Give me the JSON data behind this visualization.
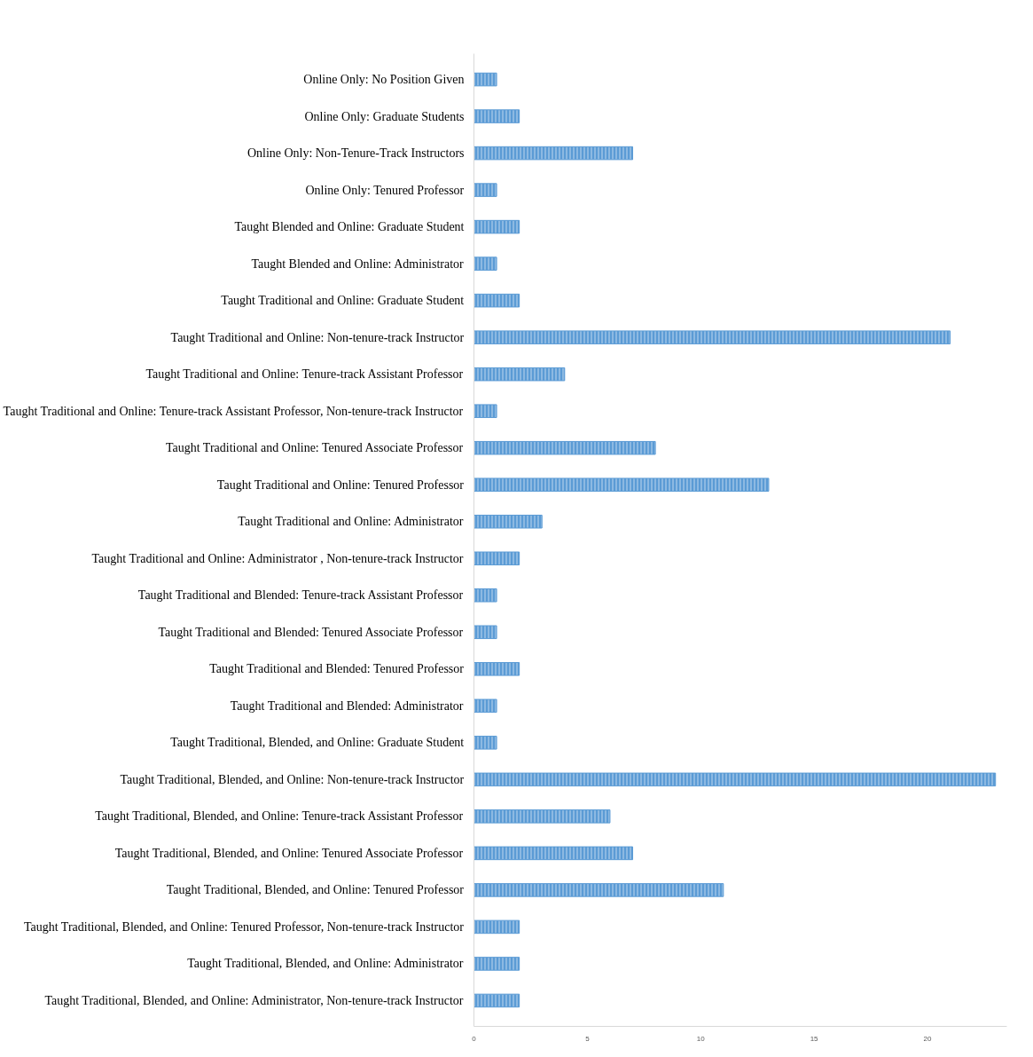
{
  "chart_data": {
    "type": "bar",
    "orientation": "horizontal",
    "categories": [
      "Online Only: No Position Given",
      "Online Only: Graduate Students",
      "Online Only: Non-Tenure-Track Instructors",
      "Online Only: Tenured Professor",
      "Taught Blended and Online: Graduate Student",
      "Taught Blended and Online: Administrator",
      "Taught Traditional and Online: Graduate Student",
      "Taught Traditional and Online: Non-tenure-track Instructor",
      "Taught Traditional and Online: Tenure-track Assistant Professor",
      "Taught Traditional and Online: Tenure-track Assistant Professor, Non-tenure-track Instructor",
      "Taught Traditional and Online: Tenured Associate Professor",
      "Taught Traditional and Online: Tenured Professor",
      "Taught Traditional and Online: Administrator",
      "Taught Traditional and Online: Administrator , Non-tenure-track Instructor",
      "Taught Traditional and Blended: Tenure-track Assistant Professor",
      "Taught Traditional and Blended: Tenured Associate Professor",
      "Taught Traditional and Blended: Tenured Professor",
      "Taught Traditional and Blended: Administrator",
      "Taught Traditional, Blended, and Online: Graduate Student",
      "Taught Traditional, Blended, and Online: Non-tenure-track Instructor",
      "Taught Traditional, Blended, and Online: Tenure-track Assistant Professor",
      "Taught Traditional, Blended, and Online: Tenured Associate Professor",
      "Taught Traditional, Blended, and Online: Tenured Professor",
      "Taught Traditional, Blended, and Online: Tenured Professor, Non-tenure-track Instructor",
      "Taught Traditional, Blended, and Online: Administrator",
      "Taught Traditional, Blended, and Online: Administrator, Non-tenure-track Instructor"
    ],
    "values": [
      1,
      2,
      7,
      1,
      2,
      1,
      2,
      21,
      4,
      1,
      8,
      13,
      3,
      2,
      1,
      1,
      2,
      1,
      1,
      23,
      6,
      7,
      11,
      2,
      2,
      2
    ],
    "color": "#5b9bd5",
    "xlim": [
      0,
      23.5
    ],
    "xticks": [
      0,
      5,
      10,
      15,
      20
    ],
    "grid": false
  }
}
